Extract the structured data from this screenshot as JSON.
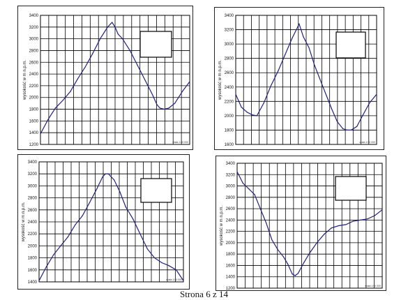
{
  "page_footer": "Strona 6 z 14",
  "chart_data": [
    {
      "type": "line",
      "ylabel": "wysokość w m n.p.m.",
      "ylim": [
        1200,
        3400
      ],
      "yticks": [
        1200,
        1400,
        1600,
        1800,
        2000,
        2200,
        2400,
        2600,
        2800,
        3000,
        3200,
        3400
      ],
      "xlim": [
        0,
        100
      ],
      "grid": true,
      "scale_note": "skala 1:50 000",
      "legend_box": "top-right",
      "line_color": "#1f1f80",
      "x": [
        0,
        5,
        10,
        15,
        20,
        25,
        30,
        35,
        40,
        45,
        48,
        50,
        52,
        55,
        60,
        65,
        70,
        75,
        78,
        80,
        83,
        86,
        90,
        95,
        100
      ],
      "values": [
        1380,
        1620,
        1820,
        1950,
        2100,
        2320,
        2520,
        2750,
        3000,
        3200,
        3280,
        3200,
        3080,
        3000,
        2800,
        2550,
        2300,
        2050,
        1880,
        1820,
        1800,
        1820,
        1900,
        2100,
        2270
      ]
    },
    {
      "type": "line",
      "ylabel": "wysokość w m n.p.m.",
      "ylim": [
        1600,
        3400
      ],
      "yticks": [
        1600,
        1800,
        2000,
        2200,
        2400,
        2600,
        2800,
        3000,
        3200,
        3400
      ],
      "xlim": [
        0,
        100
      ],
      "grid": true,
      "scale_note": "skala 1:50 000",
      "legend_box": "top-right",
      "line_color": "#1f1f80",
      "x": [
        0,
        4,
        8,
        12,
        15,
        20,
        25,
        30,
        35,
        40,
        43,
        45,
        48,
        52,
        56,
        62,
        68,
        72,
        76,
        79,
        82,
        86,
        90,
        95,
        100
      ],
      "values": [
        2300,
        2120,
        2050,
        2010,
        2000,
        2180,
        2420,
        2620,
        2850,
        3080,
        3200,
        3280,
        3100,
        2950,
        2700,
        2400,
        2100,
        1920,
        1820,
        1800,
        1800,
        1850,
        2000,
        2180,
        2300
      ]
    },
    {
      "type": "line",
      "ylabel": "wysokość w m n.p.m.",
      "ylim": [
        1400,
        3400
      ],
      "yticks": [
        1400,
        1600,
        1800,
        2000,
        2200,
        2400,
        2600,
        2800,
        3000,
        3200,
        3400
      ],
      "xlim": [
        0,
        100
      ],
      "grid": true,
      "scale_note": "skala 1:50 000",
      "legend_box": "top-right",
      "line_color": "#1f1f80",
      "x": [
        0,
        5,
        10,
        15,
        20,
        25,
        30,
        35,
        40,
        44,
        46,
        48,
        52,
        56,
        60,
        65,
        70,
        75,
        80,
        85,
        90,
        95,
        100
      ],
      "values": [
        1420,
        1650,
        1850,
        2000,
        2150,
        2350,
        2500,
        2720,
        2950,
        3150,
        3200,
        3200,
        3100,
        2900,
        2650,
        2450,
        2200,
        1950,
        1800,
        1720,
        1670,
        1600,
        1420
      ]
    },
    {
      "type": "line",
      "ylabel": "wysokość w m n.p.m.",
      "ylim": [
        1200,
        3400
      ],
      "yticks": [
        1200,
        1400,
        1600,
        1800,
        2000,
        2200,
        2400,
        2600,
        2800,
        3000,
        3200,
        3400
      ],
      "xlim": [
        0,
        100
      ],
      "grid": true,
      "scale_note": "skala 1:50 000",
      "legend_box": "top-right",
      "line_color": "#1f1f80",
      "x": [
        0,
        4,
        8,
        12,
        16,
        20,
        24,
        28,
        32,
        35,
        38,
        40,
        42,
        46,
        50,
        55,
        60,
        65,
        70,
        75,
        80,
        85,
        90,
        95,
        100
      ],
      "values": [
        3250,
        3050,
        2950,
        2850,
        2600,
        2350,
        2050,
        1880,
        1750,
        1620,
        1450,
        1420,
        1460,
        1650,
        1820,
        2000,
        2150,
        2260,
        2300,
        2320,
        2380,
        2400,
        2420,
        2480,
        2580
      ]
    }
  ]
}
